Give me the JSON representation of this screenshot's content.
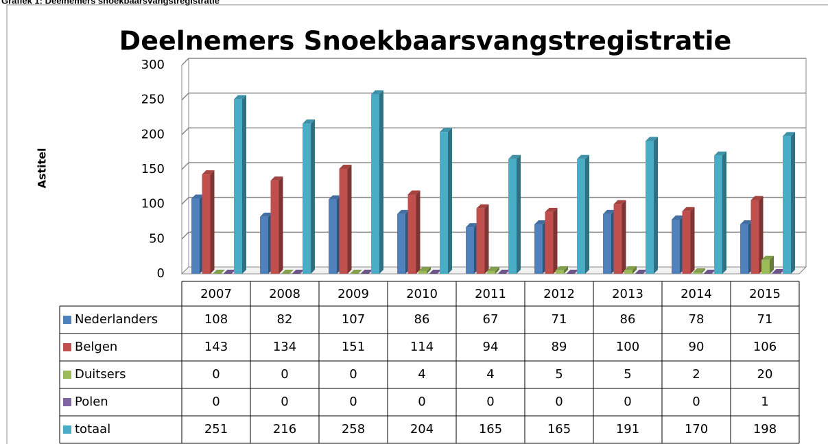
{
  "chart_data": {
    "type": "bar",
    "caption": "Grafiek 1: Deelnemers snoekbaarsvangstregistratie",
    "title": "Deelnemers Snoekbaarsvangstregistratie",
    "y_label": "Astitel",
    "categories": [
      "2007",
      "2008",
      "2009",
      "2010",
      "2011",
      "2012",
      "2013",
      "2014",
      "2015"
    ],
    "series": [
      {
        "name": "Nederlanders",
        "color": "#4f81bd",
        "values": [
          108,
          82,
          107,
          86,
          67,
          71,
          86,
          78,
          71
        ]
      },
      {
        "name": "Belgen",
        "color": "#c0504d",
        "values": [
          143,
          134,
          151,
          114,
          94,
          89,
          100,
          90,
          106
        ]
      },
      {
        "name": "Duitsers",
        "color": "#9bbb59",
        "values": [
          0,
          0,
          0,
          4,
          4,
          5,
          5,
          2,
          20
        ]
      },
      {
        "name": "Polen",
        "color": "#8064a2",
        "values": [
          0,
          0,
          0,
          0,
          0,
          0,
          0,
          0,
          1
        ]
      },
      {
        "name": "totaal",
        "color": "#4bacc6",
        "values": [
          251,
          216,
          258,
          204,
          165,
          165,
          191,
          170,
          198
        ]
      }
    ],
    "ylim": [
      0,
      300
    ],
    "yticks": [
      0,
      50,
      100,
      150,
      200,
      250,
      300
    ],
    "grid": true
  }
}
